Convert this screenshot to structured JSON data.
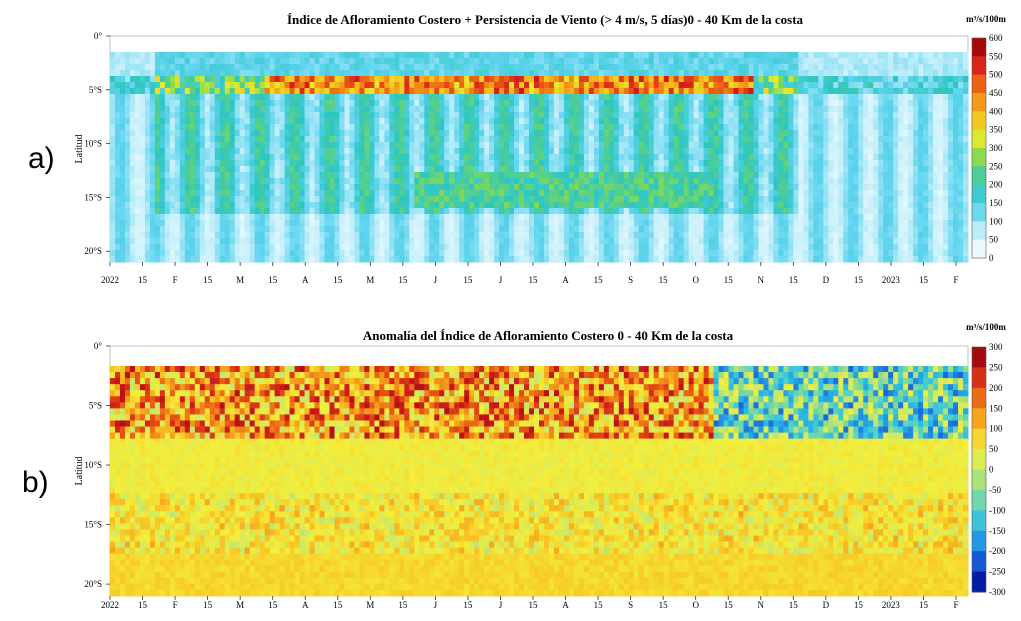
{
  "labels": {
    "a": "a)",
    "b": "b)"
  },
  "chart_data": [
    {
      "type": "heatmap",
      "title": "Índice de Afloramiento Costero + Persistencia de Viento (> 4 m/s, 5 días)0 - 40 Km de la costa",
      "ylabel": "Latitud",
      "colorbar_unit": "m³/s/100m",
      "colorbar_ticks": [
        "600",
        "550",
        "500",
        "450",
        "400",
        "350",
        "300",
        "250",
        "200",
        "150",
        "100",
        "50",
        "0"
      ],
      "colorbar_range": [
        0,
        600
      ],
      "colorbar_colors": [
        "#ffffff",
        "#c8f0fb",
        "#5fd4ee",
        "#2ec6c0",
        "#7ed957",
        "#e8ec2a",
        "#f6b51c",
        "#ef6c12",
        "#d7191c",
        "#8b0000"
      ],
      "x_ticks": [
        "2022",
        "15",
        "F",
        "15",
        "M",
        "15",
        "A",
        "15",
        "M",
        "15",
        "J",
        "15",
        "J",
        "15",
        "A",
        "15",
        "S",
        "15",
        "O",
        "15",
        "N",
        "15",
        "D",
        "15",
        "2023",
        "15",
        "F"
      ],
      "y_ticks": [
        "0°",
        "5°S",
        "10°S",
        "15°S",
        "20°S"
      ],
      "y_range": [
        0,
        21
      ]
    },
    {
      "type": "heatmap",
      "title": "Anomalía del Índice de Afloramiento Costero 0 - 40 Km de la costa",
      "ylabel": "Latitud",
      "colorbar_unit": "m³/s/100m",
      "colorbar_ticks": [
        "300",
        "250",
        "200",
        "150",
        "100",
        "50",
        "0",
        "-50",
        "-100",
        "-150",
        "-200",
        "-250",
        "-300"
      ],
      "colorbar_range": [
        -300,
        300
      ],
      "colorbar_colors": [
        "#00007f",
        "#0a36c8",
        "#1f7be0",
        "#27b6e8",
        "#4fd1c9",
        "#8edc8a",
        "#c9e86a",
        "#f3ee3c",
        "#f8c022",
        "#f38a18",
        "#e34a14",
        "#c8161b",
        "#7f0000"
      ],
      "x_ticks": [
        "2022",
        "15",
        "F",
        "15",
        "M",
        "15",
        "A",
        "15",
        "M",
        "15",
        "J",
        "15",
        "J",
        "15",
        "A",
        "15",
        "S",
        "15",
        "O",
        "15",
        "N",
        "15",
        "D",
        "15",
        "2023",
        "15",
        "F"
      ],
      "y_ticks": [
        "0°",
        "5°S",
        "10°S",
        "15°S",
        "20°S"
      ],
      "y_range": [
        0,
        21
      ]
    }
  ]
}
